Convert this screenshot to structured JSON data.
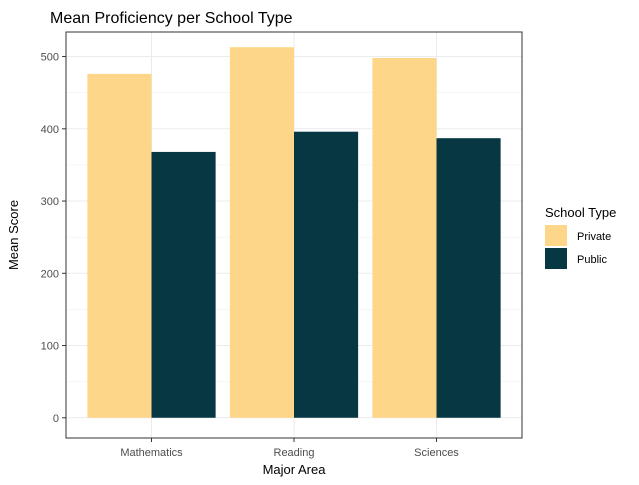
{
  "chart_data": {
    "type": "bar",
    "title": "Mean Proficiency per School Type",
    "xlabel": "Major Area",
    "ylabel": "Mean Score",
    "categories": [
      "Mathematics",
      "Reading",
      "Sciences"
    ],
    "series": [
      {
        "name": "Private",
        "color": "#fdd68a",
        "values": [
          476,
          513,
          498
        ]
      },
      {
        "name": "Public",
        "color": "#063743",
        "values": [
          368,
          396,
          387
        ]
      }
    ],
    "ylim": [
      -28,
      534
    ],
    "yticks": [
      0,
      100,
      200,
      300,
      400,
      500
    ],
    "grid": true,
    "legend": {
      "title": "School Type",
      "position": "right"
    }
  }
}
